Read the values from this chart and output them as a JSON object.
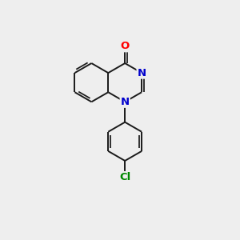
{
  "background_color": "#eeeeee",
  "bond_color": "#1a1a1a",
  "atom_colors": {
    "O": "#ff0000",
    "N": "#0000cc",
    "Cl": "#008800",
    "C": "#1a1a1a"
  },
  "bond_width": 1.4,
  "font_size_atoms": 9.5
}
